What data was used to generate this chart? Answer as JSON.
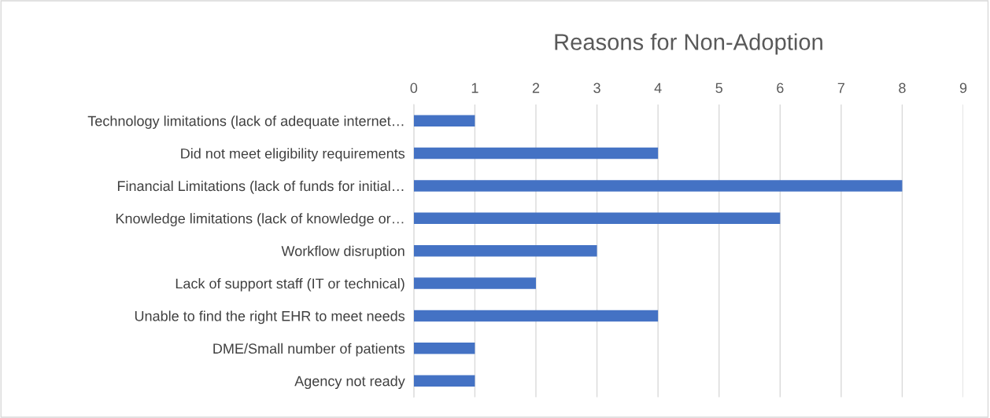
{
  "chart_data": {
    "type": "bar",
    "orientation": "horizontal",
    "title": "Reasons for Non-Adoption",
    "categories": [
      "Technology limitations (lack of adequate internet…",
      "Did not meet eligibility requirements",
      "Financial Limitations (lack of funds for initial…",
      "Knowledge limitations (lack of knowledge or…",
      "Workflow disruption",
      "Lack of support staff (IT or technical)",
      "Unable to find the right EHR to meet needs",
      "DME/Small number of patients",
      "Agency not ready"
    ],
    "values": [
      1,
      4,
      8,
      6,
      3,
      2,
      4,
      1,
      1
    ],
    "color": "#4472c4",
    "xlim": [
      0,
      9
    ],
    "xticks": [
      0,
      1,
      2,
      3,
      4,
      5,
      6,
      7,
      8,
      9
    ],
    "grid": "x"
  }
}
